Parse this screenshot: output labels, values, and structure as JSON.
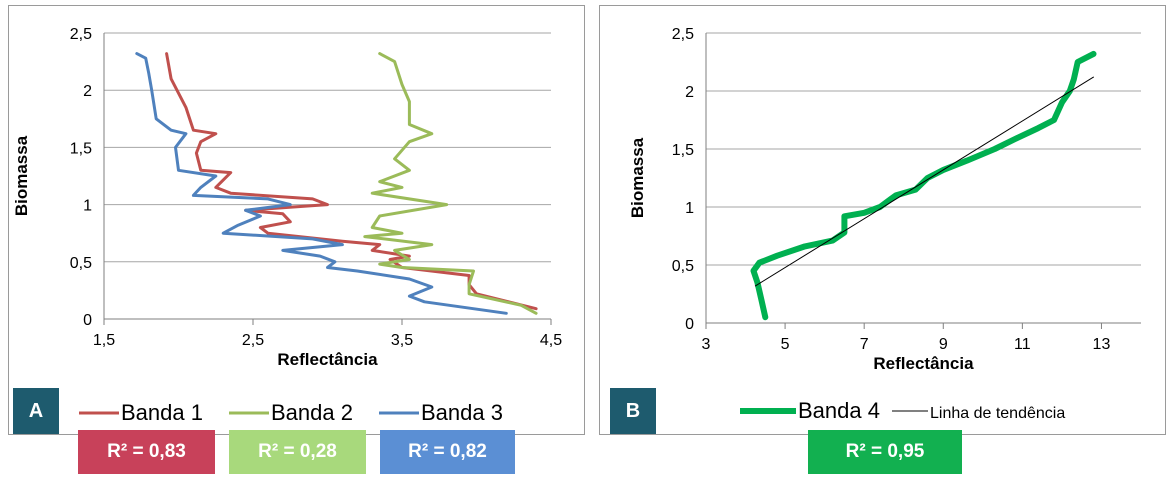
{
  "chart_data": [
    {
      "id": "A",
      "type": "line",
      "xlabel": "Reflectância",
      "ylabel": "Biomassa",
      "xlim": [
        1.5,
        4.5
      ],
      "ylim": [
        0,
        2.5
      ],
      "xticks": [
        "1,5",
        "2,5",
        "3,5",
        "4,5"
      ],
      "yticks": [
        "0",
        "0,5",
        "1",
        "1,5",
        "2",
        "2,5"
      ],
      "grid": "horizontal",
      "legend_position": "bottom",
      "series": [
        {
          "name": "Banda 1",
          "color": "#c0504d",
          "r2": "R² = 0,83",
          "points": [
            [
              4.4,
              0.09
            ],
            [
              4.0,
              0.22
            ],
            [
              3.95,
              0.3
            ],
            [
              3.95,
              0.38
            ],
            [
              3.5,
              0.45
            ],
            [
              3.42,
              0.52
            ],
            [
              3.55,
              0.55
            ],
            [
              3.3,
              0.6
            ],
            [
              3.35,
              0.65
            ],
            [
              3.1,
              0.68
            ],
            [
              2.6,
              0.75
            ],
            [
              2.55,
              0.8
            ],
            [
              2.75,
              0.85
            ],
            [
              2.7,
              0.92
            ],
            [
              2.45,
              0.95
            ],
            [
              3.0,
              1.0
            ],
            [
              2.9,
              1.05
            ],
            [
              2.35,
              1.1
            ],
            [
              2.25,
              1.15
            ],
            [
              2.35,
              1.28
            ],
            [
              2.15,
              1.3
            ],
            [
              2.12,
              1.45
            ],
            [
              2.15,
              1.55
            ],
            [
              2.25,
              1.62
            ],
            [
              2.1,
              1.65
            ],
            [
              2.05,
              1.85
            ],
            [
              1.95,
              2.1
            ],
            [
              1.92,
              2.32
            ]
          ]
        },
        {
          "name": "Banda 2",
          "color": "#9bbb59",
          "r2": "R² = 0,28",
          "points": [
            [
              4.4,
              0.05
            ],
            [
              4.3,
              0.12
            ],
            [
              3.95,
              0.22
            ],
            [
              3.95,
              0.3
            ],
            [
              3.98,
              0.42
            ],
            [
              3.5,
              0.45
            ],
            [
              3.35,
              0.48
            ],
            [
              3.55,
              0.52
            ],
            [
              3.45,
              0.6
            ],
            [
              3.7,
              0.65
            ],
            [
              3.25,
              0.72
            ],
            [
              3.5,
              0.75
            ],
            [
              3.3,
              0.8
            ],
            [
              3.35,
              0.9
            ],
            [
              3.8,
              1.0
            ],
            [
              3.3,
              1.1
            ],
            [
              3.5,
              1.15
            ],
            [
              3.35,
              1.2
            ],
            [
              3.55,
              1.3
            ],
            [
              3.45,
              1.4
            ],
            [
              3.55,
              1.55
            ],
            [
              3.7,
              1.62
            ],
            [
              3.55,
              1.7
            ],
            [
              3.55,
              1.9
            ],
            [
              3.5,
              2.05
            ],
            [
              3.45,
              2.25
            ],
            [
              3.35,
              2.32
            ]
          ]
        },
        {
          "name": "Banda 3",
          "color": "#4f81bd",
          "r2": "R² = 0,82",
          "points": [
            [
              4.2,
              0.05
            ],
            [
              3.65,
              0.15
            ],
            [
              3.55,
              0.2
            ],
            [
              3.7,
              0.28
            ],
            [
              3.55,
              0.35
            ],
            [
              3.2,
              0.42
            ],
            [
              3.0,
              0.45
            ],
            [
              3.05,
              0.5
            ],
            [
              2.95,
              0.55
            ],
            [
              2.7,
              0.6
            ],
            [
              3.1,
              0.65
            ],
            [
              2.9,
              0.7
            ],
            [
              2.3,
              0.75
            ],
            [
              2.4,
              0.82
            ],
            [
              2.55,
              0.9
            ],
            [
              2.45,
              0.95
            ],
            [
              2.75,
              1.0
            ],
            [
              2.6,
              1.05
            ],
            [
              2.1,
              1.08
            ],
            [
              2.15,
              1.15
            ],
            [
              2.25,
              1.25
            ],
            [
              2.0,
              1.3
            ],
            [
              1.98,
              1.5
            ],
            [
              2.05,
              1.62
            ],
            [
              1.95,
              1.65
            ],
            [
              1.85,
              1.75
            ],
            [
              1.82,
              2.0
            ],
            [
              1.8,
              2.15
            ],
            [
              1.78,
              2.28
            ],
            [
              1.72,
              2.32
            ]
          ]
        }
      ]
    },
    {
      "id": "B",
      "type": "line",
      "xlabel": "Reflectância",
      "ylabel": "Biomassa",
      "xlim": [
        3,
        14
      ],
      "ylim": [
        0,
        2.5
      ],
      "xticks": [
        "3",
        "5",
        "7",
        "9",
        "11",
        "13"
      ],
      "yticks": [
        "0",
        "0,5",
        "1",
        "1,5",
        "2",
        "2,5"
      ],
      "grid": "horizontal",
      "legend_position": "bottom",
      "series": [
        {
          "name": "Banda 4",
          "color": "#00b050",
          "r2": "R² = 0,95",
          "points": [
            [
              4.5,
              0.05
            ],
            [
              4.4,
              0.2
            ],
            [
              4.3,
              0.35
            ],
            [
              4.2,
              0.45
            ],
            [
              4.35,
              0.52
            ],
            [
              4.8,
              0.58
            ],
            [
              5.5,
              0.66
            ],
            [
              6.2,
              0.71
            ],
            [
              6.5,
              0.78
            ],
            [
              6.5,
              0.92
            ],
            [
              7.0,
              0.95
            ],
            [
              7.4,
              1.0
            ],
            [
              7.8,
              1.1
            ],
            [
              8.3,
              1.15
            ],
            [
              8.6,
              1.25
            ],
            [
              9.0,
              1.32
            ],
            [
              9.6,
              1.4
            ],
            [
              10.3,
              1.5
            ],
            [
              10.9,
              1.6
            ],
            [
              11.4,
              1.68
            ],
            [
              11.8,
              1.75
            ],
            [
              12.0,
              1.9
            ],
            [
              12.2,
              2.0
            ],
            [
              12.3,
              2.1
            ],
            [
              12.4,
              2.25
            ],
            [
              12.8,
              2.32
            ]
          ]
        },
        {
          "name": "Linha de tendência",
          "color": "#000000",
          "points": [
            [
              4.25,
              0.32
            ],
            [
              12.8,
              2.12
            ]
          ]
        }
      ]
    }
  ]
}
